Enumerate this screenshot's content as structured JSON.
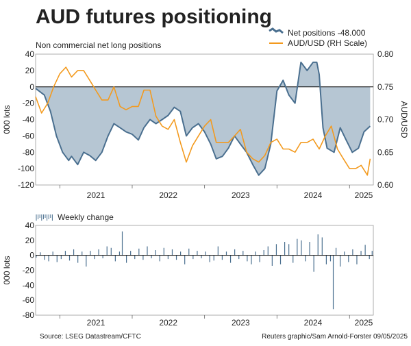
{
  "chart_data": [
    {
      "type": "area",
      "title": "AUD futures positioning",
      "subtitle": "Non commercial net long positions",
      "ylabel": "000 lots",
      "y2label": "AUD/USD",
      "ylim": [
        -120,
        40
      ],
      "y2lim": [
        0.6,
        0.8
      ],
      "yticks": [
        40,
        20,
        0,
        -20,
        -40,
        -60,
        -80,
        -100,
        -120
      ],
      "yticklabels": [
        "40",
        "20",
        "0",
        "-20",
        "-40",
        "-60",
        "-80",
        "-100",
        "-120"
      ],
      "y2ticks": [
        0.8,
        0.75,
        0.7,
        0.65,
        0.6
      ],
      "y2ticklabels": [
        "0.80",
        "0.75",
        "0.70",
        "0.65",
        "0.60"
      ],
      "xlim": [
        "2020-09-01",
        "2025-05-01"
      ],
      "xticklabels": [
        "2021",
        "2022",
        "2023",
        "2024",
        "2025"
      ],
      "xtickdates": [
        "2021-01-01",
        "2022-01-01",
        "2023-01-01",
        "2024-01-01",
        "2025-01-01"
      ],
      "legend_position": "top-right",
      "series": [
        {
          "name": "Net positions -48.000",
          "axis": "left",
          "color": "#4a6f8f",
          "fill": "#b6c6d3",
          "points": [
            [
              "2020-09-01",
              -2
            ],
            [
              "2020-10-15",
              -10
            ],
            [
              "2020-11-15",
              -30
            ],
            [
              "2020-12-15",
              -60
            ],
            [
              "2021-01-15",
              -80
            ],
            [
              "2021-02-15",
              -90
            ],
            [
              "2021-03-01",
              -85
            ],
            [
              "2021-04-01",
              -95
            ],
            [
              "2021-05-01",
              -80
            ],
            [
              "2021-06-01",
              -84
            ],
            [
              "2021-07-01",
              -90
            ],
            [
              "2021-08-01",
              -80
            ],
            [
              "2021-09-01",
              -60
            ],
            [
              "2021-10-01",
              -45
            ],
            [
              "2021-11-01",
              -50
            ],
            [
              "2021-12-01",
              -55
            ],
            [
              "2022-01-01",
              -58
            ],
            [
              "2022-02-01",
              -65
            ],
            [
              "2022-03-01",
              -50
            ],
            [
              "2022-04-01",
              -40
            ],
            [
              "2022-05-01",
              -45
            ],
            [
              "2022-06-01",
              -40
            ],
            [
              "2022-07-01",
              -35
            ],
            [
              "2022-08-01",
              -25
            ],
            [
              "2022-09-01",
              -30
            ],
            [
              "2022-10-01",
              -60
            ],
            [
              "2022-11-01",
              -50
            ],
            [
              "2022-12-01",
              -45
            ],
            [
              "2023-01-01",
              -55
            ],
            [
              "2023-02-01",
              -70
            ],
            [
              "2023-03-01",
              -88
            ],
            [
              "2023-04-01",
              -85
            ],
            [
              "2023-05-01",
              -75
            ],
            [
              "2023-06-01",
              -60
            ],
            [
              "2023-07-01",
              -70
            ],
            [
              "2023-08-01",
              -80
            ],
            [
              "2023-09-01",
              -95
            ],
            [
              "2023-10-01",
              -108
            ],
            [
              "2023-11-01",
              -100
            ],
            [
              "2023-12-01",
              -70
            ],
            [
              "2024-01-01",
              -5
            ],
            [
              "2024-02-01",
              8
            ],
            [
              "2024-03-01",
              -10
            ],
            [
              "2024-04-01",
              -20
            ],
            [
              "2024-05-01",
              30
            ],
            [
              "2024-06-01",
              20
            ],
            [
              "2024-07-01",
              30
            ],
            [
              "2024-07-20",
              30
            ],
            [
              "2024-08-01",
              15
            ],
            [
              "2024-08-20",
              -50
            ],
            [
              "2024-09-10",
              -75
            ],
            [
              "2024-10-15",
              -80
            ],
            [
              "2024-11-15",
              -50
            ],
            [
              "2024-12-15",
              -65
            ],
            [
              "2025-01-15",
              -80
            ],
            [
              "2025-02-15",
              -75
            ],
            [
              "2025-03-15",
              -55
            ],
            [
              "2025-04-15",
              -48
            ]
          ]
        },
        {
          "name": "AUD/USD (RH Scale)",
          "axis": "right",
          "color": "#f39a1e",
          "points": [
            [
              "2020-09-01",
              0.735
            ],
            [
              "2020-10-01",
              0.71
            ],
            [
              "2020-11-01",
              0.725
            ],
            [
              "2020-12-01",
              0.75
            ],
            [
              "2021-01-01",
              0.77
            ],
            [
              "2021-02-01",
              0.78
            ],
            [
              "2021-03-01",
              0.765
            ],
            [
              "2021-04-01",
              0.775
            ],
            [
              "2021-05-01",
              0.775
            ],
            [
              "2021-06-01",
              0.76
            ],
            [
              "2021-07-01",
              0.745
            ],
            [
              "2021-08-01",
              0.73
            ],
            [
              "2021-09-01",
              0.73
            ],
            [
              "2021-10-01",
              0.75
            ],
            [
              "2021-11-01",
              0.72
            ],
            [
              "2021-12-01",
              0.715
            ],
            [
              "2022-01-01",
              0.72
            ],
            [
              "2022-02-01",
              0.72
            ],
            [
              "2022-03-01",
              0.745
            ],
            [
              "2022-04-01",
              0.745
            ],
            [
              "2022-05-01",
              0.705
            ],
            [
              "2022-06-01",
              0.69
            ],
            [
              "2022-07-01",
              0.685
            ],
            [
              "2022-08-01",
              0.7
            ],
            [
              "2022-09-01",
              0.665
            ],
            [
              "2022-10-01",
              0.635
            ],
            [
              "2022-11-01",
              0.66
            ],
            [
              "2022-12-01",
              0.675
            ],
            [
              "2023-01-01",
              0.69
            ],
            [
              "2023-02-01",
              0.7
            ],
            [
              "2023-03-01",
              0.665
            ],
            [
              "2023-04-01",
              0.665
            ],
            [
              "2023-05-01",
              0.665
            ],
            [
              "2023-06-01",
              0.675
            ],
            [
              "2023-07-01",
              0.685
            ],
            [
              "2023-08-01",
              0.65
            ],
            [
              "2023-09-01",
              0.64
            ],
            [
              "2023-10-01",
              0.635
            ],
            [
              "2023-11-01",
              0.645
            ],
            [
              "2023-12-01",
              0.665
            ],
            [
              "2024-01-01",
              0.67
            ],
            [
              "2024-02-01",
              0.655
            ],
            [
              "2024-03-01",
              0.655
            ],
            [
              "2024-04-01",
              0.65
            ],
            [
              "2024-05-01",
              0.665
            ],
            [
              "2024-06-01",
              0.665
            ],
            [
              "2024-07-01",
              0.67
            ],
            [
              "2024-08-01",
              0.655
            ],
            [
              "2024-09-01",
              0.675
            ],
            [
              "2024-10-01",
              0.69
            ],
            [
              "2024-11-01",
              0.655
            ],
            [
              "2024-12-01",
              0.64
            ],
            [
              "2025-01-01",
              0.625
            ],
            [
              "2025-02-01",
              0.625
            ],
            [
              "2025-03-01",
              0.63
            ],
            [
              "2025-04-01",
              0.615
            ],
            [
              "2025-04-15",
              0.64
            ]
          ]
        }
      ]
    },
    {
      "type": "bar",
      "series_label": "Weekly change",
      "ylabel": "000 lots",
      "ylim": [
        -80,
        40
      ],
      "yticks": [
        40,
        20,
        0,
        -20,
        -40,
        -60,
        -80
      ],
      "yticklabels": [
        "40",
        "20",
        "0",
        "-20",
        "-40",
        "-60",
        "-80"
      ],
      "xlim": [
        "2020-09-01",
        "2025-05-01"
      ],
      "xticklabels": [
        "2021",
        "2022",
        "2023",
        "2024",
        "2025"
      ],
      "xtickdates": [
        "2021-01-01",
        "2022-01-01",
        "2023-01-01",
        "2024-01-01",
        "2025-01-01"
      ],
      "color": "#4a6f8f",
      "bars": [
        [
          "2020-09-04",
          -3
        ],
        [
          "2020-09-25",
          4
        ],
        [
          "2020-10-16",
          -6
        ],
        [
          "2020-11-06",
          -8
        ],
        [
          "2020-11-27",
          5
        ],
        [
          "2020-12-18",
          -9
        ],
        [
          "2021-01-08",
          -5
        ],
        [
          "2021-01-29",
          6
        ],
        [
          "2021-02-19",
          -7
        ],
        [
          "2021-03-12",
          8
        ],
        [
          "2021-04-02",
          -10
        ],
        [
          "2021-04-23",
          5
        ],
        [
          "2021-05-14",
          -15
        ],
        [
          "2021-06-04",
          6
        ],
        [
          "2021-06-25",
          -5
        ],
        [
          "2021-07-16",
          8
        ],
        [
          "2021-08-06",
          -4
        ],
        [
          "2021-08-27",
          12
        ],
        [
          "2021-09-17",
          10
        ],
        [
          "2021-10-08",
          -8
        ],
        [
          "2021-10-29",
          5
        ],
        [
          "2021-11-12",
          32
        ],
        [
          "2021-12-03",
          -10
        ],
        [
          "2021-12-24",
          6
        ],
        [
          "2022-01-14",
          -5
        ],
        [
          "2022-02-04",
          9
        ],
        [
          "2022-02-25",
          -6
        ],
        [
          "2022-03-18",
          12
        ],
        [
          "2022-04-08",
          -4
        ],
        [
          "2022-04-29",
          7
        ],
        [
          "2022-05-20",
          -8
        ],
        [
          "2022-06-10",
          10
        ],
        [
          "2022-07-01",
          -5
        ],
        [
          "2022-07-22",
          8
        ],
        [
          "2022-08-12",
          -6
        ],
        [
          "2022-09-02",
          5
        ],
        [
          "2022-09-23",
          -12
        ],
        [
          "2022-10-14",
          9
        ],
        [
          "2022-11-04",
          -5
        ],
        [
          "2022-11-25",
          6
        ],
        [
          "2022-12-16",
          -4
        ],
        [
          "2023-01-06",
          5
        ],
        [
          "2023-01-27",
          -9
        ],
        [
          "2023-02-17",
          -7
        ],
        [
          "2023-03-10",
          12
        ],
        [
          "2023-03-31",
          -6
        ],
        [
          "2023-04-21",
          5
        ],
        [
          "2023-05-12",
          -10
        ],
        [
          "2023-06-02",
          8
        ],
        [
          "2023-06-23",
          -5
        ],
        [
          "2023-07-14",
          6
        ],
        [
          "2023-08-04",
          -8
        ],
        [
          "2023-08-25",
          -12
        ],
        [
          "2023-09-15",
          5
        ],
        [
          "2023-10-06",
          -9
        ],
        [
          "2023-10-27",
          7
        ],
        [
          "2023-11-17",
          12
        ],
        [
          "2023-12-08",
          -14
        ],
        [
          "2023-12-29",
          15
        ],
        [
          "2024-01-19",
          -12
        ],
        [
          "2024-02-09",
          18
        ],
        [
          "2024-03-01",
          15
        ],
        [
          "2024-03-22",
          -10
        ],
        [
          "2024-04-12",
          22
        ],
        [
          "2024-05-03",
          20
        ],
        [
          "2024-05-24",
          -8
        ],
        [
          "2024-06-14",
          18
        ],
        [
          "2024-07-05",
          -22
        ],
        [
          "2024-07-26",
          28
        ],
        [
          "2024-08-16",
          24
        ],
        [
          "2024-09-06",
          -12
        ],
        [
          "2024-09-27",
          -8
        ],
        [
          "2024-10-11",
          -72
        ],
        [
          "2024-10-25",
          10
        ],
        [
          "2024-11-15",
          -15
        ],
        [
          "2024-12-06",
          5
        ],
        [
          "2024-12-27",
          -9
        ],
        [
          "2025-01-17",
          8
        ],
        [
          "2025-02-07",
          -12
        ],
        [
          "2025-02-28",
          6
        ],
        [
          "2025-03-21",
          14
        ],
        [
          "2025-04-11",
          -5
        ],
        [
          "2025-04-25",
          6
        ]
      ]
    }
  ],
  "footer": {
    "source": "Source: LSEG Datastream/CFTC",
    "credit": "Reuters graphic/Sam Arnold-Forster 09/05/2025"
  },
  "colors": {
    "net_line": "#4a6f8f",
    "net_fill": "#b6c6d3",
    "audusd": "#f39a1e",
    "bar": "#4a6f8f"
  }
}
